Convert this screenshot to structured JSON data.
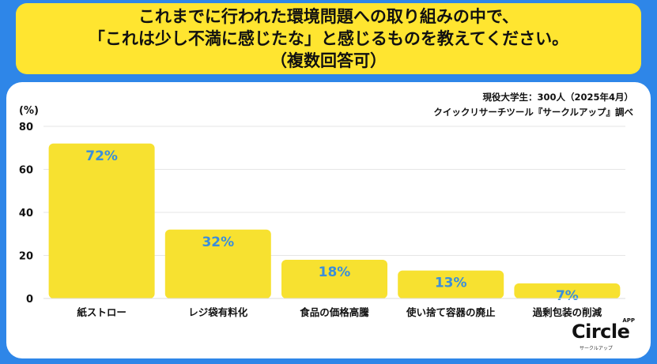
{
  "header": {
    "line1": "これまでに行われた環境問題への取り組みの中で、",
    "line2": "「これは少し不満に感じたな」と感じるものを教えてください。",
    "line3": "（複数回答可）"
  },
  "source": {
    "line1": "現役大学生：300人（2025年4月）",
    "line2": "クイックリサーチツール『サークルアップ』調べ"
  },
  "logo": {
    "word": "Circle",
    "app": "APP",
    "sub": "サークルアップ"
  },
  "colors": {
    "bar": "#F7E130",
    "label": "#3A8EDB",
    "background": "#2E86E8",
    "title_box": "#FFE530"
  },
  "chart_data": {
    "type": "bar",
    "title": "これまでに行われた環境問題への取り組みの中で、「これは少し不満に感じたな」と感じるものを教えてください。（複数回答可）",
    "ylabel": "(%)",
    "xlabel": "",
    "ylim": [
      0,
      80
    ],
    "yticks": [
      0,
      20,
      40,
      60,
      80
    ],
    "grid": true,
    "categories": [
      "紙ストロー",
      "レジ袋有料化",
      "食品の価格高騰",
      "使い捨て容器の廃止",
      "過剰包装の削減"
    ],
    "values": [
      72,
      32,
      18,
      13,
      7
    ],
    "value_labels": [
      "72%",
      "32%",
      "18%",
      "13%",
      "7%"
    ]
  }
}
